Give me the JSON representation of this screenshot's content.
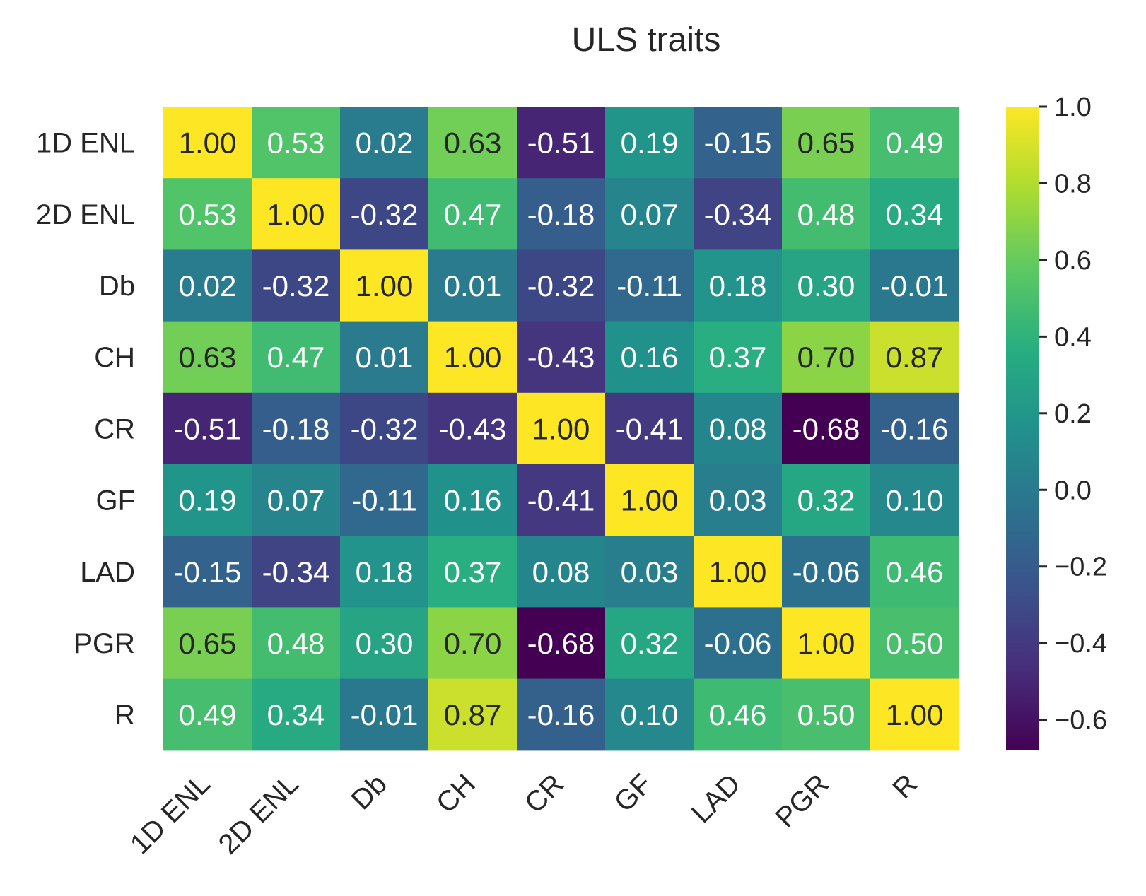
{
  "chart_data": {
    "type": "heatmap",
    "title": "ULS traits",
    "colormap": "viridis",
    "row_labels": [
      "1D ENL",
      "2D ENL",
      "Db",
      "CH",
      "CR",
      "GF",
      "LAD",
      "PGR",
      "R"
    ],
    "col_labels": [
      "1D ENL",
      "2D ENL",
      "Db",
      "CH",
      "CR",
      "GF",
      "LAD",
      "PGR",
      "R"
    ],
    "values": [
      [
        1.0,
        0.53,
        0.02,
        0.63,
        -0.51,
        0.19,
        -0.15,
        0.65,
        0.49
      ],
      [
        0.53,
        1.0,
        -0.32,
        0.47,
        -0.18,
        0.07,
        -0.34,
        0.48,
        0.34
      ],
      [
        0.02,
        -0.32,
        1.0,
        0.01,
        -0.32,
        -0.11,
        0.18,
        0.3,
        -0.01
      ],
      [
        0.63,
        0.47,
        0.01,
        1.0,
        -0.43,
        0.16,
        0.37,
        0.7,
        0.87
      ],
      [
        -0.51,
        -0.18,
        -0.32,
        -0.43,
        1.0,
        -0.41,
        0.08,
        -0.68,
        -0.16
      ],
      [
        0.19,
        0.07,
        -0.11,
        0.16,
        -0.41,
        1.0,
        0.03,
        0.32,
        0.1
      ],
      [
        -0.15,
        -0.34,
        0.18,
        0.37,
        0.08,
        0.03,
        1.0,
        -0.06,
        0.46
      ],
      [
        0.65,
        0.48,
        0.3,
        0.7,
        -0.68,
        0.32,
        -0.06,
        1.0,
        0.5
      ],
      [
        0.49,
        0.34,
        -0.01,
        0.87,
        -0.16,
        0.1,
        0.46,
        0.5,
        1.0
      ]
    ],
    "vmin": -0.68,
    "vmax": 1.0,
    "colorbar_ticks": [
      1.0,
      0.8,
      0.6,
      0.4,
      0.2,
      0.0,
      -0.2,
      -0.4,
      -0.6
    ],
    "colorbar_tick_labels": [
      "1.0",
      "0.8",
      "0.6",
      "0.4",
      "0.2",
      "0.0",
      "−0.2",
      "−0.4",
      "−0.6"
    ]
  }
}
